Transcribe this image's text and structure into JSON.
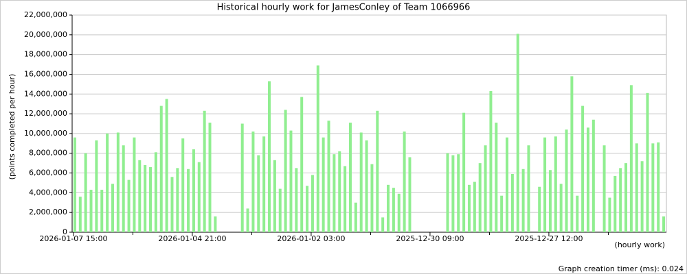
{
  "chart_data": {
    "type": "bar",
    "title": "Historical hourly work for JamesConley of Team 1066966",
    "y_label": "(points completed per hour)",
    "x_label": "(hourly work)",
    "footer": "Graph creation timer (ms): 0.024",
    "color": "#90ee90",
    "grid": true,
    "ylim": [
      0,
      22000000
    ],
    "yticks": [
      0,
      {
        "value": 2000000,
        "label": "2,000,000"
      },
      {
        "value": 4000000,
        "label": "4,000,000"
      },
      {
        "value": 6000000,
        "label": "6,000,000"
      },
      {
        "value": 8000000,
        "label": "8,000,000"
      },
      {
        "value": 10000000,
        "label": "10,000,000"
      },
      {
        "value": 12000000,
        "label": "12,000,000"
      },
      {
        "value": 14000000,
        "label": "14,000,000"
      },
      {
        "value": 16000000,
        "label": "16,000,000"
      },
      {
        "value": 18000000,
        "label": "18,000,000"
      },
      {
        "value": 20000000,
        "label": "20,000,000"
      },
      {
        "value": 22000000,
        "label": "22,000,000"
      }
    ],
    "categories": [
      "2026-01-07 15:00",
      null,
      null,
      null,
      null,
      null,
      null,
      null,
      null,
      null,
      null,
      null,
      null,
      null,
      null,
      null,
      null,
      null,
      null,
      null,
      null,
      null,
      "2026-01-04 21:00",
      null,
      null,
      null,
      null,
      null,
      null,
      null,
      null,
      null,
      null,
      null,
      null,
      null,
      null,
      null,
      null,
      null,
      null,
      null,
      null,
      null,
      "2026-01-02 03:00",
      null,
      null,
      null,
      null,
      null,
      null,
      null,
      null,
      null,
      null,
      null,
      null,
      null,
      null,
      null,
      null,
      null,
      null,
      null,
      null,
      null,
      "2025-12-30 09:00",
      null,
      null,
      null,
      null,
      null,
      null,
      null,
      null,
      null,
      null,
      null,
      null,
      null,
      null,
      null,
      null,
      null,
      null,
      null,
      null,
      null,
      "2025-12-27 12:00",
      null,
      null,
      null,
      null,
      null,
      null,
      null,
      null,
      null,
      null,
      null,
      null,
      null,
      null,
      null,
      null,
      null,
      null,
      null,
      null,
      null
    ],
    "values": [
      9600000,
      3600000,
      8000000,
      4300000,
      9300000,
      4300000,
      10000000,
      4900000,
      10100000,
      8800000,
      5300000,
      9600000,
      7300000,
      6800000,
      6600000,
      8100000,
      12800000,
      13500000,
      5600000,
      6500000,
      9500000,
      6400000,
      8400000,
      7100000,
      12300000,
      11100000,
      1600000,
      null,
      null,
      null,
      null,
      11000000,
      2400000,
      10200000,
      7800000,
      9700000,
      15300000,
      7300000,
      4400000,
      12400000,
      10300000,
      6500000,
      13700000,
      4700000,
      5800000,
      16900000,
      9600000,
      11300000,
      7900000,
      8200000,
      6700000,
      11100000,
      3000000,
      10100000,
      9300000,
      6900000,
      12300000,
      1500000,
      4800000,
      4500000,
      3900000,
      10200000,
      7600000,
      null,
      null,
      null,
      null,
      null,
      null,
      8000000,
      7800000,
      7900000,
      12100000,
      4800000,
      5100000,
      7000000,
      8800000,
      14300000,
      11100000,
      3700000,
      9600000,
      5900000,
      20100000,
      6400000,
      8800000,
      null,
      4600000,
      9600000,
      6300000,
      9700000,
      4900000,
      10400000,
      15800000,
      3700000,
      12800000,
      10600000,
      11400000,
      null,
      8800000,
      3500000,
      5700000,
      6500000,
      7000000,
      14900000,
      9000000,
      7200000,
      14100000,
      9000000,
      9100000,
      1600000
    ]
  }
}
